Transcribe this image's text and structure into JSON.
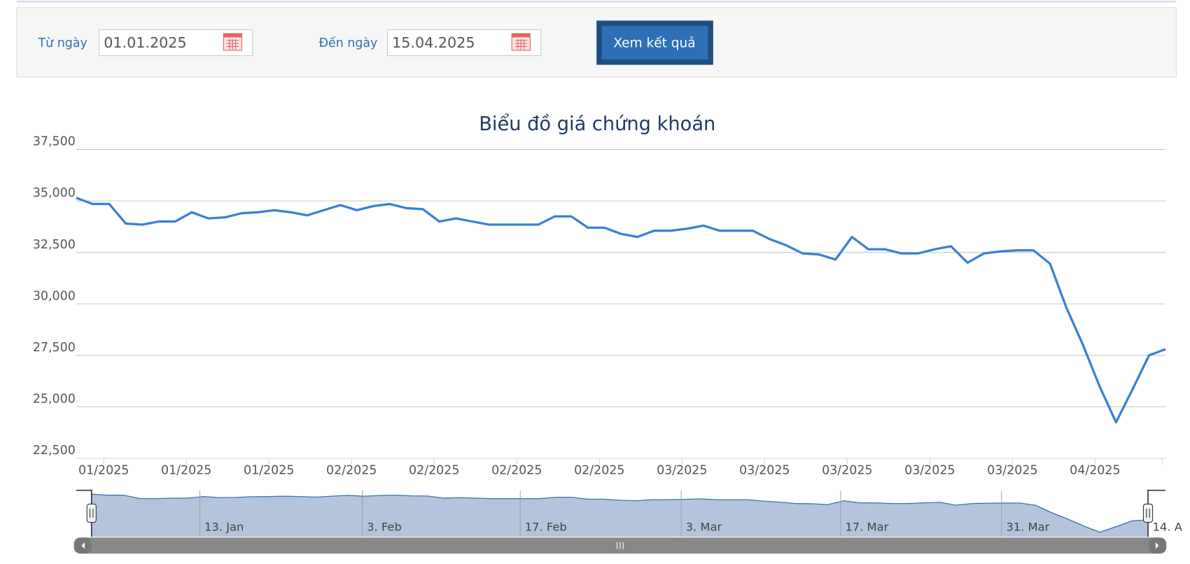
{
  "form": {
    "from_label": "Từ ngày",
    "from_value": "01.01.2025",
    "to_label": "Đến ngày",
    "to_value": "15.04.2025",
    "button": "Xem kết quả"
  },
  "chart_data": {
    "type": "line",
    "title": "Biểu đồ giá chứng khoán",
    "series": [
      {
        "name": "Giá",
        "color": "#3a7fd5",
        "values": [
          35150,
          34850,
          34850,
          33900,
          33850,
          34000,
          34000,
          34450,
          34150,
          34200,
          34400,
          34450,
          34550,
          34450,
          34300,
          34550,
          34800,
          34550,
          34750,
          34850,
          34650,
          34600,
          34000,
          34150,
          34000,
          33850,
          33850,
          33850,
          33850,
          34250,
          34250,
          33700,
          33700,
          33400,
          33250,
          33550,
          33550,
          33650,
          33800,
          33550,
          33550,
          33550,
          33150,
          32850,
          32450,
          32400,
          32150,
          33250,
          32650,
          32650,
          32450,
          32450,
          32650,
          32800,
          32000,
          32450,
          32550,
          32600,
          32600,
          31950,
          29800,
          28000,
          26000,
          24250,
          25850,
          27500,
          27800
        ]
      }
    ],
    "ylim": [
      22500,
      37500
    ],
    "yticks": [
      {
        "value": 22500,
        "label": "22,500"
      },
      {
        "value": 25000,
        "label": "25,000"
      },
      {
        "value": 27500,
        "label": "27,500"
      },
      {
        "value": 30000,
        "label": "30,000"
      },
      {
        "value": 32500,
        "label": "32,500"
      },
      {
        "value": 35000,
        "label": "35,000"
      },
      {
        "value": 37500,
        "label": "37,500"
      }
    ],
    "grid": true,
    "xtick_labels": [
      "01/2025",
      "01/2025",
      "01/2025",
      "02/2025",
      "02/2025",
      "02/2025",
      "02/2025",
      "03/2025",
      "03/2025",
      "03/2025",
      "03/2025",
      "03/2025",
      "04/2025"
    ],
    "navigator_labels": [
      "13. Jan",
      "3. Feb",
      "17. Feb",
      "3. Mar",
      "17. Mar",
      "31. Mar",
      "14. A"
    ]
  }
}
